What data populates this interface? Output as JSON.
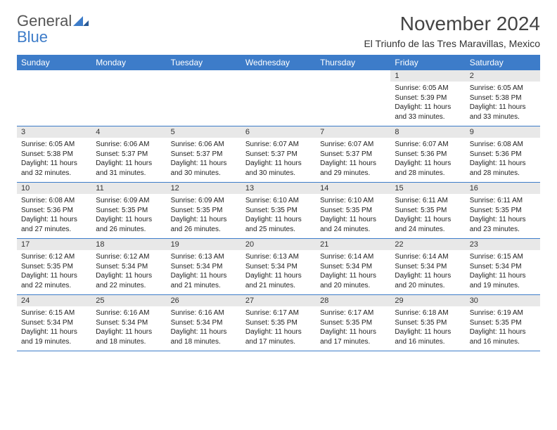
{
  "logo": {
    "line1": "General",
    "line2": "Blue"
  },
  "title": "November 2024",
  "location": "El Triunfo de las Tres Maravillas, Mexico",
  "colors": {
    "header_bg": "#3d7cc9",
    "header_text": "#ffffff",
    "daynum_bg": "#e8e8e8",
    "border": "#3d7cc9",
    "body_text": "#222222",
    "title_text": "#444444"
  },
  "weekdays": [
    "Sunday",
    "Monday",
    "Tuesday",
    "Wednesday",
    "Thursday",
    "Friday",
    "Saturday"
  ],
  "weeks": [
    [
      null,
      null,
      null,
      null,
      null,
      {
        "n": "1",
        "sr": "Sunrise: 6:05 AM",
        "ss": "Sunset: 5:39 PM",
        "d1": "Daylight: 11 hours",
        "d2": "and 33 minutes."
      },
      {
        "n": "2",
        "sr": "Sunrise: 6:05 AM",
        "ss": "Sunset: 5:38 PM",
        "d1": "Daylight: 11 hours",
        "d2": "and 33 minutes."
      }
    ],
    [
      {
        "n": "3",
        "sr": "Sunrise: 6:05 AM",
        "ss": "Sunset: 5:38 PM",
        "d1": "Daylight: 11 hours",
        "d2": "and 32 minutes."
      },
      {
        "n": "4",
        "sr": "Sunrise: 6:06 AM",
        "ss": "Sunset: 5:37 PM",
        "d1": "Daylight: 11 hours",
        "d2": "and 31 minutes."
      },
      {
        "n": "5",
        "sr": "Sunrise: 6:06 AM",
        "ss": "Sunset: 5:37 PM",
        "d1": "Daylight: 11 hours",
        "d2": "and 30 minutes."
      },
      {
        "n": "6",
        "sr": "Sunrise: 6:07 AM",
        "ss": "Sunset: 5:37 PM",
        "d1": "Daylight: 11 hours",
        "d2": "and 30 minutes."
      },
      {
        "n": "7",
        "sr": "Sunrise: 6:07 AM",
        "ss": "Sunset: 5:37 PM",
        "d1": "Daylight: 11 hours",
        "d2": "and 29 minutes."
      },
      {
        "n": "8",
        "sr": "Sunrise: 6:07 AM",
        "ss": "Sunset: 5:36 PM",
        "d1": "Daylight: 11 hours",
        "d2": "and 28 minutes."
      },
      {
        "n": "9",
        "sr": "Sunrise: 6:08 AM",
        "ss": "Sunset: 5:36 PM",
        "d1": "Daylight: 11 hours",
        "d2": "and 28 minutes."
      }
    ],
    [
      {
        "n": "10",
        "sr": "Sunrise: 6:08 AM",
        "ss": "Sunset: 5:36 PM",
        "d1": "Daylight: 11 hours",
        "d2": "and 27 minutes."
      },
      {
        "n": "11",
        "sr": "Sunrise: 6:09 AM",
        "ss": "Sunset: 5:35 PM",
        "d1": "Daylight: 11 hours",
        "d2": "and 26 minutes."
      },
      {
        "n": "12",
        "sr": "Sunrise: 6:09 AM",
        "ss": "Sunset: 5:35 PM",
        "d1": "Daylight: 11 hours",
        "d2": "and 26 minutes."
      },
      {
        "n": "13",
        "sr": "Sunrise: 6:10 AM",
        "ss": "Sunset: 5:35 PM",
        "d1": "Daylight: 11 hours",
        "d2": "and 25 minutes."
      },
      {
        "n": "14",
        "sr": "Sunrise: 6:10 AM",
        "ss": "Sunset: 5:35 PM",
        "d1": "Daylight: 11 hours",
        "d2": "and 24 minutes."
      },
      {
        "n": "15",
        "sr": "Sunrise: 6:11 AM",
        "ss": "Sunset: 5:35 PM",
        "d1": "Daylight: 11 hours",
        "d2": "and 24 minutes."
      },
      {
        "n": "16",
        "sr": "Sunrise: 6:11 AM",
        "ss": "Sunset: 5:35 PM",
        "d1": "Daylight: 11 hours",
        "d2": "and 23 minutes."
      }
    ],
    [
      {
        "n": "17",
        "sr": "Sunrise: 6:12 AM",
        "ss": "Sunset: 5:35 PM",
        "d1": "Daylight: 11 hours",
        "d2": "and 22 minutes."
      },
      {
        "n": "18",
        "sr": "Sunrise: 6:12 AM",
        "ss": "Sunset: 5:34 PM",
        "d1": "Daylight: 11 hours",
        "d2": "and 22 minutes."
      },
      {
        "n": "19",
        "sr": "Sunrise: 6:13 AM",
        "ss": "Sunset: 5:34 PM",
        "d1": "Daylight: 11 hours",
        "d2": "and 21 minutes."
      },
      {
        "n": "20",
        "sr": "Sunrise: 6:13 AM",
        "ss": "Sunset: 5:34 PM",
        "d1": "Daylight: 11 hours",
        "d2": "and 21 minutes."
      },
      {
        "n": "21",
        "sr": "Sunrise: 6:14 AM",
        "ss": "Sunset: 5:34 PM",
        "d1": "Daylight: 11 hours",
        "d2": "and 20 minutes."
      },
      {
        "n": "22",
        "sr": "Sunrise: 6:14 AM",
        "ss": "Sunset: 5:34 PM",
        "d1": "Daylight: 11 hours",
        "d2": "and 20 minutes."
      },
      {
        "n": "23",
        "sr": "Sunrise: 6:15 AM",
        "ss": "Sunset: 5:34 PM",
        "d1": "Daylight: 11 hours",
        "d2": "and 19 minutes."
      }
    ],
    [
      {
        "n": "24",
        "sr": "Sunrise: 6:15 AM",
        "ss": "Sunset: 5:34 PM",
        "d1": "Daylight: 11 hours",
        "d2": "and 19 minutes."
      },
      {
        "n": "25",
        "sr": "Sunrise: 6:16 AM",
        "ss": "Sunset: 5:34 PM",
        "d1": "Daylight: 11 hours",
        "d2": "and 18 minutes."
      },
      {
        "n": "26",
        "sr": "Sunrise: 6:16 AM",
        "ss": "Sunset: 5:34 PM",
        "d1": "Daylight: 11 hours",
        "d2": "and 18 minutes."
      },
      {
        "n": "27",
        "sr": "Sunrise: 6:17 AM",
        "ss": "Sunset: 5:35 PM",
        "d1": "Daylight: 11 hours",
        "d2": "and 17 minutes."
      },
      {
        "n": "28",
        "sr": "Sunrise: 6:17 AM",
        "ss": "Sunset: 5:35 PM",
        "d1": "Daylight: 11 hours",
        "d2": "and 17 minutes."
      },
      {
        "n": "29",
        "sr": "Sunrise: 6:18 AM",
        "ss": "Sunset: 5:35 PM",
        "d1": "Daylight: 11 hours",
        "d2": "and 16 minutes."
      },
      {
        "n": "30",
        "sr": "Sunrise: 6:19 AM",
        "ss": "Sunset: 5:35 PM",
        "d1": "Daylight: 11 hours",
        "d2": "and 16 minutes."
      }
    ]
  ]
}
